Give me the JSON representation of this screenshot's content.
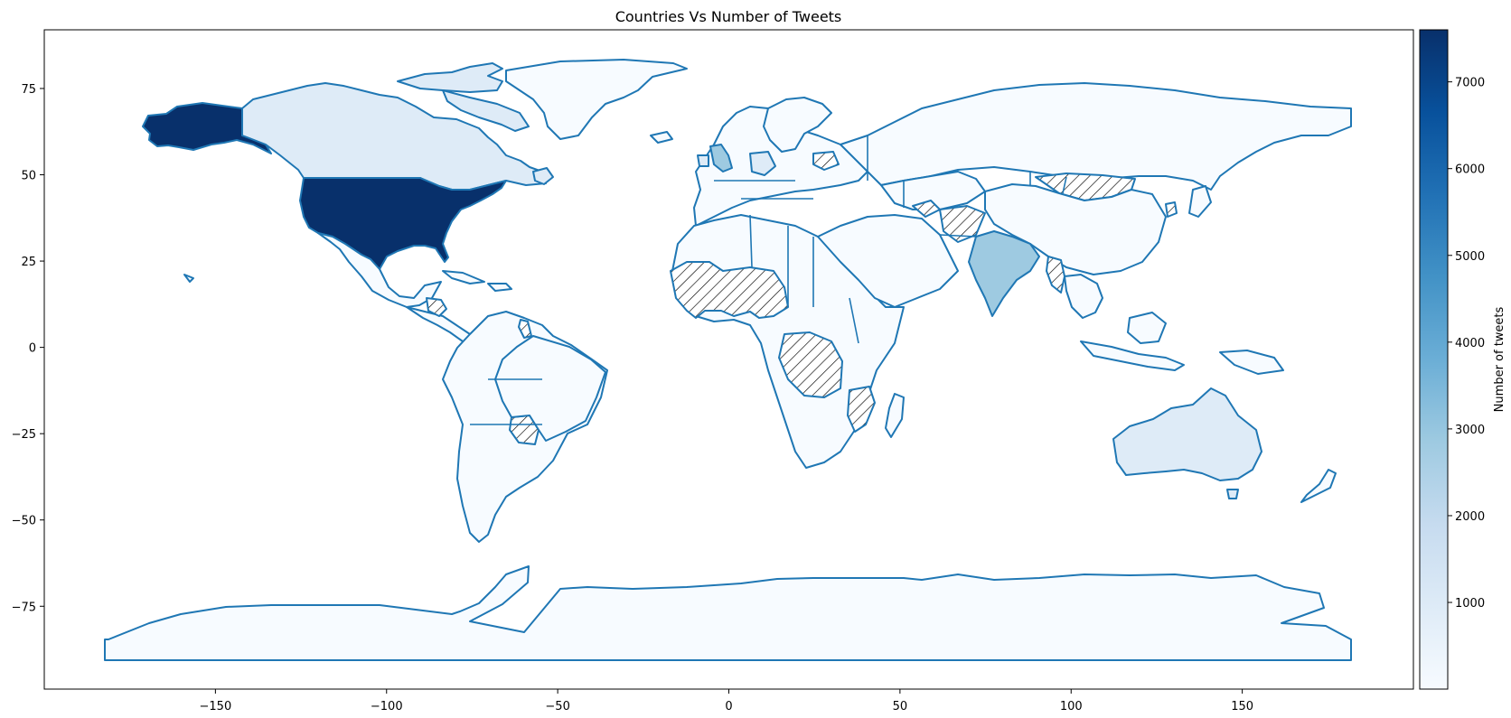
{
  "chart_data": {
    "type": "choropleth",
    "title": "Countries Vs Number of Tweets",
    "xlabel": "",
    "ylabel": "",
    "xlim": [
      -200,
      200
    ],
    "ylim": [
      -99,
      92
    ],
    "xticks": [
      -150,
      -100,
      -50,
      0,
      50,
      100,
      150
    ],
    "yticks": [
      75,
      50,
      25,
      0,
      -25,
      -50,
      -75
    ],
    "colorbar": {
      "label": "Number of tweets",
      "range": [
        1,
        7600
      ],
      "ticks": [
        1000,
        2000,
        3000,
        4000,
        5000,
        6000,
        7000
      ],
      "colormap": "Blues"
    },
    "grid": false,
    "legend": "colorbar on the right",
    "missing_value_style": "hatched",
    "regions": [
      {
        "name": "United States",
        "value": 7500
      },
      {
        "name": "Canada",
        "value": 1200
      },
      {
        "name": "India",
        "value": 2200
      },
      {
        "name": "United Kingdom",
        "value": 2000
      },
      {
        "name": "Australia",
        "value": 900
      },
      {
        "name": "Greenland",
        "value": 150
      },
      {
        "name": "Russia",
        "value": 100
      },
      {
        "name": "China",
        "value": 100
      },
      {
        "name": "Brazil",
        "value": 100
      },
      {
        "name": "Antarctica",
        "value": 1
      }
    ]
  },
  "colors": {
    "border": "#1f77b4",
    "hatch": "#000000"
  }
}
